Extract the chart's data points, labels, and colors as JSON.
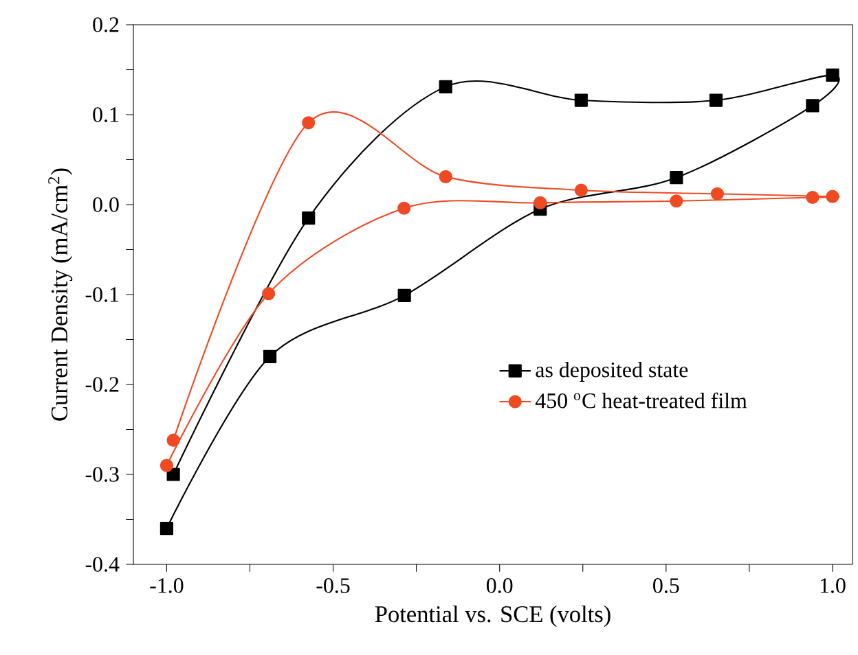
{
  "chart_data": {
    "type": "line",
    "xlabel": "Potential vs. SCE (volts)",
    "ylabel": "Current Density (mA/cm$^{2}$)",
    "xlim": [
      -1.1,
      1.06
    ],
    "ylim": [
      -0.4,
      0.2
    ],
    "xticks": [
      {
        "value": -1.0,
        "label": "-1.0"
      },
      {
        "value": -0.75,
        "label": null
      },
      {
        "value": -0.5,
        "label": "-0.5"
      },
      {
        "value": -0.25,
        "label": null
      },
      {
        "value": 0.0,
        "label": "0.0"
      },
      {
        "value": 0.25,
        "label": null
      },
      {
        "value": 0.5,
        "label": "0.5"
      },
      {
        "value": 0.75,
        "label": null
      },
      {
        "value": 1.0,
        "label": "1.0"
      }
    ],
    "yticks": [
      {
        "value": -0.4,
        "label": "-0.4"
      },
      {
        "value": -0.35,
        "label": null
      },
      {
        "value": -0.3,
        "label": "-0.3"
      },
      {
        "value": -0.25,
        "label": null
      },
      {
        "value": -0.2,
        "label": "-0.2"
      },
      {
        "value": -0.15,
        "label": null
      },
      {
        "value": -0.1,
        "label": "-0.1"
      },
      {
        "value": -0.05,
        "label": null
      },
      {
        "value": 0.0,
        "label": "0.0"
      },
      {
        "value": 0.05,
        "label": null
      },
      {
        "value": 0.1,
        "label": "0.1"
      },
      {
        "value": 0.15,
        "label": null
      },
      {
        "value": 0.2,
        "label": "0.2"
      }
    ],
    "grid": false,
    "legend": "right",
    "line_style": "solid",
    "series": [
      {
        "name": "as deposited state",
        "color": "#000000",
        "marker": "square",
        "x": [
          -1.0,
          -0.69,
          -0.286,
          0.122,
          0.531,
          0.94,
          1.0,
          0.65,
          0.245,
          -0.162,
          -0.574,
          -0.98
        ],
        "values": [
          -0.36,
          -0.169,
          -0.101,
          -0.005,
          0.03,
          0.11,
          0.144,
          0.116,
          0.116,
          0.131,
          -0.015,
          -0.3
        ]
      },
      {
        "name": "450 $^{o}$C heat-treated film",
        "color": "#f04a23",
        "marker": "circle",
        "x": [
          -1.0,
          -0.694,
          -0.287,
          0.122,
          0.531,
          0.94,
          1.0,
          0.654,
          0.245,
          -0.162,
          -0.574,
          -0.98
        ],
        "values": [
          -0.29,
          -0.099,
          -0.004,
          0.002,
          0.004,
          0.008,
          0.009,
          0.012,
          0.016,
          0.031,
          0.091,
          -0.262
        ]
      }
    ]
  }
}
